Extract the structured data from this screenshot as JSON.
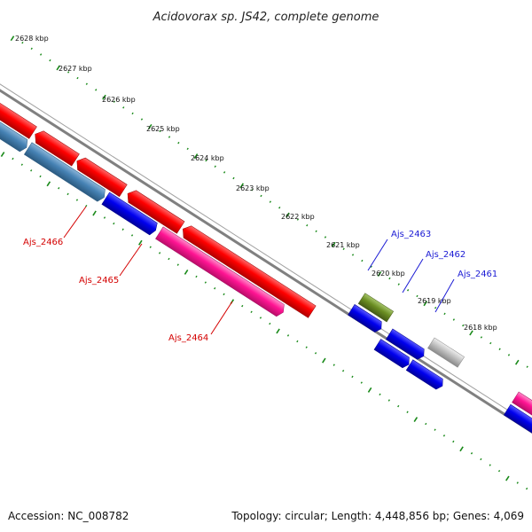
{
  "title": "Acidovorax sp. JS42, complete genome",
  "footer": {
    "accession": "Accession: NC_008782",
    "summary": "Topology: circular; Length: 4,448,856 bp; Genes: 4,069"
  },
  "ticks": [
    "2628 kbp",
    "2627 kbp",
    "2626 kbp",
    "2625 kbp",
    "2624 kbp",
    "2623 kbp",
    "2622 kbp",
    "2621 kbp",
    "2620 kbp",
    "2619 kbp",
    "2618 kbp"
  ],
  "gene_labels": [
    {
      "text": "Ajs_2466",
      "color": "#d40000"
    },
    {
      "text": "Ajs_2465",
      "color": "#d40000"
    },
    {
      "text": "Ajs_2464",
      "color": "#d40000"
    },
    {
      "text": "Ajs_2463",
      "color": "#1a1ad4"
    },
    {
      "text": "Ajs_2462",
      "color": "#1a1ad4"
    },
    {
      "text": "Ajs_2461",
      "color": "#1a1ad4"
    }
  ],
  "colors": {
    "red": "#ff0000",
    "steelblue": "#4682b4",
    "blue": "#0000ee",
    "pink": "#ff1493",
    "olive": "#6b8e23",
    "gray": "#c0c0c0",
    "backbone": "#808080",
    "tickgreen": "#1a8a1a"
  }
}
